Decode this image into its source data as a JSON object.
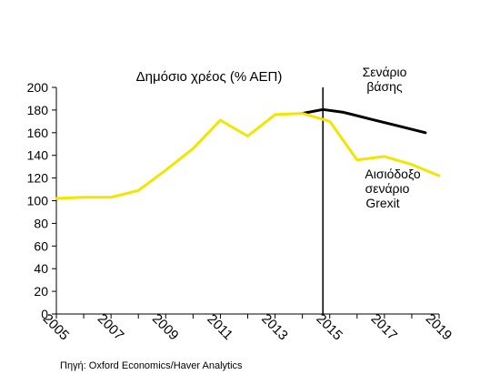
{
  "chart_data": {
    "type": "line",
    "title": "Δημόσιο χρέος (% ΑΕΠ)",
    "xlabel": "",
    "ylabel": "",
    "x": [
      2005,
      2006,
      2007,
      2008,
      2009,
      2010,
      2011,
      2012,
      2013,
      2014,
      2015,
      2016,
      2017,
      2018,
      2019
    ],
    "xticks": [
      "2005",
      "2007",
      "2009",
      "2011",
      "2013",
      "2015",
      "2017",
      "2019"
    ],
    "xlim": [
      2005,
      2019
    ],
    "ylim": [
      0,
      200
    ],
    "yticks": [
      0,
      20,
      40,
      60,
      80,
      100,
      120,
      140,
      160,
      180,
      200
    ],
    "grid": false,
    "vertical_marker_x": 2014.75,
    "series": [
      {
        "name": "Σενάριο βάσης",
        "color": "#000000",
        "points": [
          [
            2014,
            177
          ],
          [
            2014.75,
            180.5
          ],
          [
            2015.5,
            178
          ],
          [
            2016.5,
            172
          ],
          [
            2017.5,
            166
          ],
          [
            2018.5,
            160
          ]
        ]
      },
      {
        "name": "Αισιόδοξο σενάριο Grexit",
        "color": "#f2e600",
        "points": [
          [
            2005,
            102
          ],
          [
            2006,
            103
          ],
          [
            2007,
            103
          ],
          [
            2008,
            109
          ],
          [
            2009,
            127
          ],
          [
            2010,
            146
          ],
          [
            2011,
            171
          ],
          [
            2012,
            157
          ],
          [
            2013,
            176
          ],
          [
            2014,
            177
          ],
          [
            2015,
            170
          ],
          [
            2016,
            136
          ],
          [
            2017,
            139
          ],
          [
            2018,
            132
          ],
          [
            2019,
            122
          ]
        ]
      }
    ],
    "annotations": {
      "baseline_line1": "Σενάριο",
      "baseline_line2": "βάσης",
      "grexit_line1": "Αισιόδοξο",
      "grexit_line2": "σενάριο",
      "grexit_line3": "Grexit"
    },
    "source": "Πηγή: Oxford Economics/Haver Analytics"
  }
}
